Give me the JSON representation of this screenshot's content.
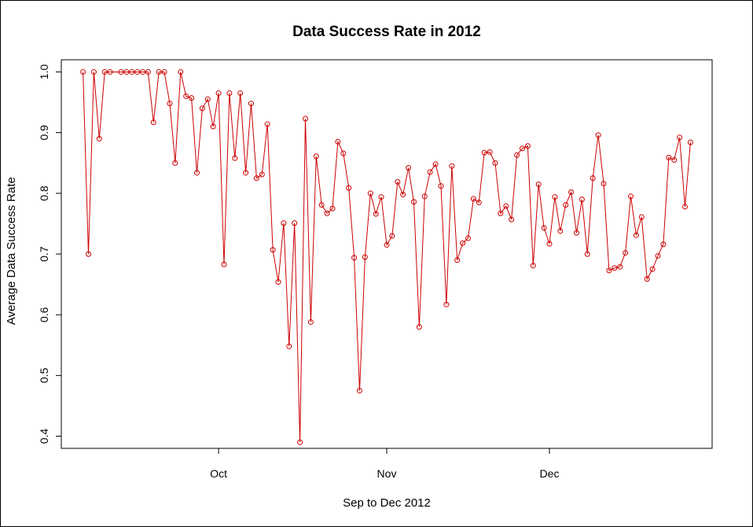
{
  "chart_data": {
    "type": "line",
    "title": "Data Success Rate in 2012",
    "xlabel": "Sep to Dec 2012",
    "ylabel": "Average Data Success Rate",
    "ylim": [
      0.38,
      1.02
    ],
    "y_ticks": [
      "0.4",
      "0.5",
      "0.6",
      "0.7",
      "0.8",
      "0.9",
      "1.0"
    ],
    "x_ticks": [
      {
        "label": "Oct",
        "date": "2012-10-01"
      },
      {
        "label": "Nov",
        "date": "2012-11-01"
      },
      {
        "label": "Dec",
        "date": "2012-12-01"
      }
    ],
    "x_range": [
      "2012-09-02",
      "2012-12-31"
    ],
    "grid": false,
    "colors": {
      "series": "#cc0000",
      "axes": "#000000"
    },
    "series": [
      {
        "marker": "open-circle",
        "points": [
          {
            "x": "2012-09-06",
            "y": 1.0
          },
          {
            "x": "2012-09-07",
            "y": 0.7
          },
          {
            "x": "2012-09-08",
            "y": 1.0
          },
          {
            "x": "2012-09-09",
            "y": 0.89
          },
          {
            "x": "2012-09-10",
            "y": 1.0
          },
          {
            "x": "2012-09-11",
            "y": 1.0
          },
          {
            "x": "2012-09-13",
            "y": 1.0
          },
          {
            "x": "2012-09-14",
            "y": 1.0
          },
          {
            "x": "2012-09-15",
            "y": 1.0
          },
          {
            "x": "2012-09-16",
            "y": 1.0
          },
          {
            "x": "2012-09-17",
            "y": 1.0
          },
          {
            "x": "2012-09-18",
            "y": 1.0
          },
          {
            "x": "2012-09-19",
            "y": 0.917
          },
          {
            "x": "2012-09-20",
            "y": 1.0
          },
          {
            "x": "2012-09-21",
            "y": 1.0
          },
          {
            "x": "2012-09-22",
            "y": 0.948
          },
          {
            "x": "2012-09-23",
            "y": 0.85
          },
          {
            "x": "2012-09-24",
            "y": 1.0
          },
          {
            "x": "2012-09-25",
            "y": 0.96
          },
          {
            "x": "2012-09-26",
            "y": 0.957
          },
          {
            "x": "2012-09-27",
            "y": 0.834
          },
          {
            "x": "2012-09-28",
            "y": 0.94
          },
          {
            "x": "2012-09-29",
            "y": 0.955
          },
          {
            "x": "2012-09-30",
            "y": 0.91
          },
          {
            "x": "2012-10-01",
            "y": 0.965
          },
          {
            "x": "2012-10-02",
            "y": 0.683
          },
          {
            "x": "2012-10-03",
            "y": 0.965
          },
          {
            "x": "2012-10-04",
            "y": 0.858
          },
          {
            "x": "2012-10-05",
            "y": 0.965
          },
          {
            "x": "2012-10-06",
            "y": 0.834
          },
          {
            "x": "2012-10-07",
            "y": 0.948
          },
          {
            "x": "2012-10-08",
            "y": 0.825
          },
          {
            "x": "2012-10-09",
            "y": 0.831
          },
          {
            "x": "2012-10-10",
            "y": 0.914
          },
          {
            "x": "2012-10-11",
            "y": 0.707
          },
          {
            "x": "2012-10-12",
            "y": 0.654
          },
          {
            "x": "2012-10-13",
            "y": 0.751
          },
          {
            "x": "2012-10-14",
            "y": 0.548
          },
          {
            "x": "2012-10-15",
            "y": 0.751
          },
          {
            "x": "2012-10-16",
            "y": 0.39
          },
          {
            "x": "2012-10-17",
            "y": 0.923
          },
          {
            "x": "2012-10-18",
            "y": 0.588
          },
          {
            "x": "2012-10-19",
            "y": 0.861
          },
          {
            "x": "2012-10-20",
            "y": 0.781
          },
          {
            "x": "2012-10-21",
            "y": 0.767
          },
          {
            "x": "2012-10-22",
            "y": 0.775
          },
          {
            "x": "2012-10-23",
            "y": 0.885
          },
          {
            "x": "2012-10-24",
            "y": 0.866
          },
          {
            "x": "2012-10-25",
            "y": 0.809
          },
          {
            "x": "2012-10-26",
            "y": 0.694
          },
          {
            "x": "2012-10-27",
            "y": 0.475
          },
          {
            "x": "2012-10-28",
            "y": 0.695
          },
          {
            "x": "2012-10-29",
            "y": 0.8
          },
          {
            "x": "2012-10-30",
            "y": 0.766
          },
          {
            "x": "2012-10-31",
            "y": 0.794
          },
          {
            "x": "2012-11-01",
            "y": 0.715
          },
          {
            "x": "2012-11-02",
            "y": 0.73
          },
          {
            "x": "2012-11-03",
            "y": 0.819
          },
          {
            "x": "2012-11-04",
            "y": 0.798
          },
          {
            "x": "2012-11-05",
            "y": 0.842
          },
          {
            "x": "2012-11-06",
            "y": 0.786
          },
          {
            "x": "2012-11-07",
            "y": 0.58
          },
          {
            "x": "2012-11-08",
            "y": 0.795
          },
          {
            "x": "2012-11-09",
            "y": 0.835
          },
          {
            "x": "2012-11-10",
            "y": 0.848
          },
          {
            "x": "2012-11-11",
            "y": 0.812
          },
          {
            "x": "2012-11-12",
            "y": 0.617
          },
          {
            "x": "2012-11-13",
            "y": 0.845
          },
          {
            "x": "2012-11-14",
            "y": 0.69
          },
          {
            "x": "2012-11-15",
            "y": 0.718
          },
          {
            "x": "2012-11-16",
            "y": 0.726
          },
          {
            "x": "2012-11-17",
            "y": 0.791
          },
          {
            "x": "2012-11-18",
            "y": 0.785
          },
          {
            "x": "2012-11-19",
            "y": 0.867
          },
          {
            "x": "2012-11-20",
            "y": 0.868
          },
          {
            "x": "2012-11-21",
            "y": 0.85
          },
          {
            "x": "2012-11-22",
            "y": 0.767
          },
          {
            "x": "2012-11-23",
            "y": 0.779
          },
          {
            "x": "2012-11-24",
            "y": 0.757
          },
          {
            "x": "2012-11-25",
            "y": 0.863
          },
          {
            "x": "2012-11-26",
            "y": 0.874
          },
          {
            "x": "2012-11-27",
            "y": 0.878
          },
          {
            "x": "2012-11-28",
            "y": 0.681
          },
          {
            "x": "2012-11-29",
            "y": 0.815
          },
          {
            "x": "2012-11-30",
            "y": 0.743
          },
          {
            "x": "2012-12-01",
            "y": 0.717
          },
          {
            "x": "2012-12-02",
            "y": 0.794
          },
          {
            "x": "2012-12-03",
            "y": 0.738
          },
          {
            "x": "2012-12-04",
            "y": 0.781
          },
          {
            "x": "2012-12-05",
            "y": 0.802
          },
          {
            "x": "2012-12-06",
            "y": 0.735
          },
          {
            "x": "2012-12-07",
            "y": 0.79
          },
          {
            "x": "2012-12-08",
            "y": 0.7
          },
          {
            "x": "2012-12-09",
            "y": 0.825
          },
          {
            "x": "2012-12-10",
            "y": 0.896
          },
          {
            "x": "2012-12-11",
            "y": 0.816
          },
          {
            "x": "2012-12-12",
            "y": 0.673
          },
          {
            "x": "2012-12-13",
            "y": 0.677
          },
          {
            "x": "2012-12-14",
            "y": 0.679
          },
          {
            "x": "2012-12-15",
            "y": 0.702
          },
          {
            "x": "2012-12-16",
            "y": 0.795
          },
          {
            "x": "2012-12-17",
            "y": 0.731
          },
          {
            "x": "2012-12-18",
            "y": 0.761
          },
          {
            "x": "2012-12-19",
            "y": 0.659
          },
          {
            "x": "2012-12-20",
            "y": 0.675
          },
          {
            "x": "2012-12-21",
            "y": 0.697
          },
          {
            "x": "2012-12-22",
            "y": 0.716
          },
          {
            "x": "2012-12-23",
            "y": 0.859
          },
          {
            "x": "2012-12-24",
            "y": 0.855
          },
          {
            "x": "2012-12-25",
            "y": 0.892
          },
          {
            "x": "2012-12-26",
            "y": 0.778
          },
          {
            "x": "2012-12-27",
            "y": 0.884
          }
        ]
      }
    ]
  }
}
